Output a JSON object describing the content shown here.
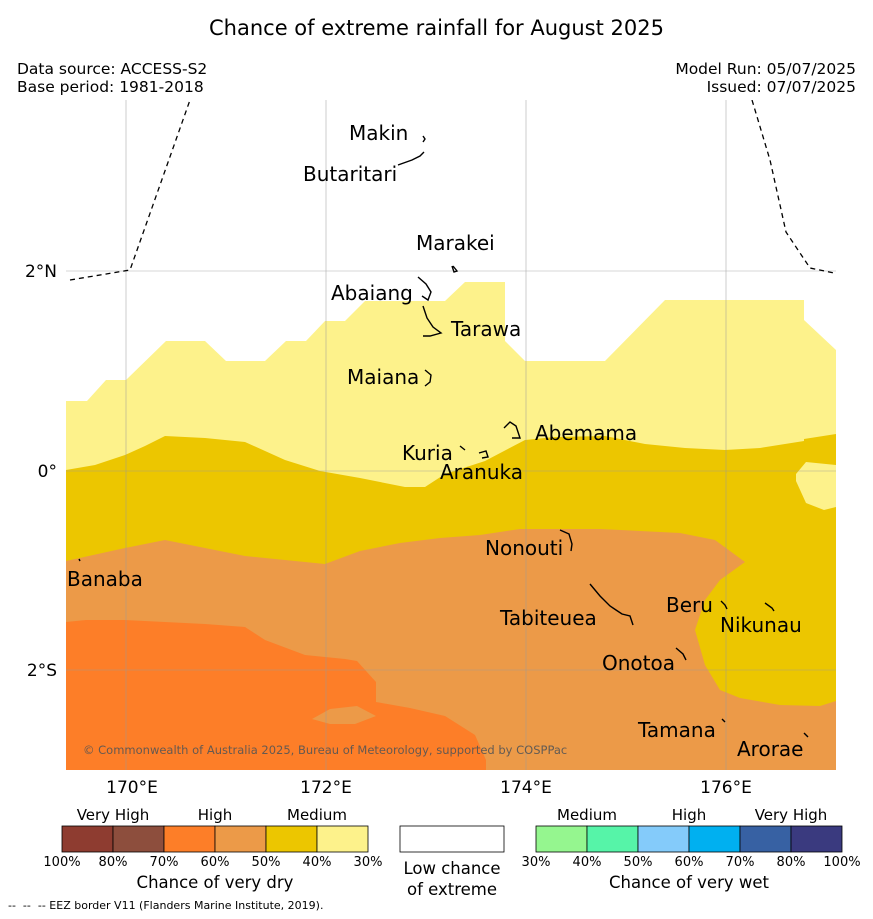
{
  "title": "Chance of extreme rainfall for August 2025",
  "data_source": "Data source: ACCESS-S2",
  "base_period": "Base period: 1981-2018",
  "model_run": "Model Run: 05/07/2025",
  "issued": "Issued: 07/07/2025",
  "copyright": "© Commonwealth of Australia 2025, Bureau of Meteorology, supported by COSPPac",
  "footer": "--  --  -- EEZ border V11 (Flanders Marine Institute, 2019).",
  "axes": {
    "lon_labels": [
      "170°E",
      "172°E",
      "174°E",
      "176°E"
    ],
    "lat_labels": [
      "2°N",
      "0°",
      "2°S"
    ]
  },
  "places": [
    "Makin",
    "Butaritari",
    "Marakei",
    "Abaiang",
    "Tarawa",
    "Maiana",
    "Abemama",
    "Kuria",
    "Aranuka",
    "Nonouti",
    "Banaba",
    "Tabiteuea",
    "Beru",
    "Nikunau",
    "Onotoa",
    "Tamana",
    "Arorae"
  ],
  "colors": {
    "dry_medium_light": "#fdf28b",
    "dry_medium": "#ecc600",
    "dry_high_light": "#ec9a48",
    "dry_high": "#fd7e28",
    "dry_very_high_light": "#8d4e3d",
    "dry_very_high": "#8e3c30",
    "wet_medium_light": "#95f68f",
    "wet_medium": "#56f4a8",
    "wet_high_light": "#84cbfa",
    "wet_high": "#00b0f0",
    "wet_very_high_light": "#3761a3",
    "wet_very_high": "#3a3a7f"
  },
  "legend": {
    "dry": {
      "title": "Chance of very dry",
      "categories": [
        "Very High",
        "High",
        "Medium"
      ],
      "ticks": [
        "100%",
        "80%",
        "70%",
        "60%",
        "50%",
        "40%",
        "30%"
      ]
    },
    "low": {
      "line1": "Low chance",
      "line2": "of extreme"
    },
    "wet": {
      "title": "Chance of very wet",
      "categories": [
        "Medium",
        "High",
        "Very High"
      ],
      "ticks": [
        "30%",
        "40%",
        "50%",
        "60%",
        "70%",
        "80%",
        "100%"
      ]
    }
  }
}
